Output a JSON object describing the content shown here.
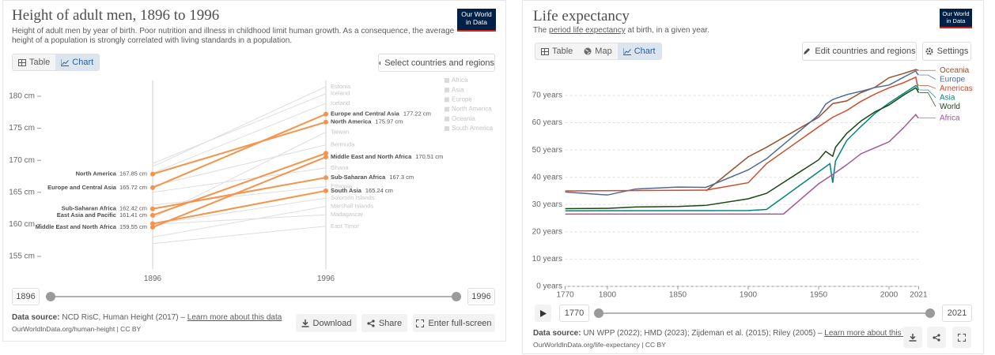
{
  "chart_data": [
    {
      "type": "slope",
      "title": "Height of adult men, 1896 to 1996",
      "subtitle": "Height of adult men by year of birth. Poor nutrition and illness in childhood limit human growth. As a consequence, the average height of a population is strongly correlated with living standards in a population.",
      "x": [
        1896,
        1996
      ],
      "xlim": [
        1896,
        1996
      ],
      "xticks": [
        1896,
        1996
      ],
      "ylim": [
        153,
        182.5
      ],
      "yticks": [
        {
          "value": 155,
          "label": "155 cm"
        },
        {
          "value": 160,
          "label": "160 cm"
        },
        {
          "value": 165,
          "label": "165 cm"
        },
        {
          "value": 170,
          "label": "170 cm"
        },
        {
          "value": 175,
          "label": "175 cm"
        },
        {
          "value": 180,
          "label": "180 cm"
        }
      ],
      "series": [
        {
          "name": "Europe and Central Asia",
          "color": "#f7924a",
          "values": [
            165.72,
            177.22
          ],
          "value_labels": [
            "165.72 cm",
            "177.22 cm"
          ]
        },
        {
          "name": "North America",
          "color": "#f7924a",
          "values": [
            167.85,
            175.97
          ],
          "value_labels": [
            "167.85 cm",
            "175.97 cm"
          ]
        },
        {
          "name": "Middle East and North Africa",
          "color": "#f7924a",
          "values": [
            159.55,
            170.51
          ],
          "value_labels": [
            "159.55 cm",
            "170.51 cm"
          ]
        },
        {
          "name": "Sub-Saharan Africa",
          "color": "#f7924a",
          "values": [
            162.42,
            167.3
          ],
          "value_labels": [
            "162.42 cm",
            "167.3 cm"
          ]
        },
        {
          "name": "East Asia and Pacific",
          "color": "#f7924a",
          "values": [
            161.41,
            171.1
          ],
          "value_labels": [
            "161.41 cm",
            null
          ]
        },
        {
          "name": "South Asia",
          "color": "#f7924a",
          "values": [
            160.1,
            165.24
          ],
          "value_labels": [
            null,
            "165.24 cm"
          ]
        }
      ],
      "background_series": [
        {
          "name": "Estonia",
          "color": "#dedede",
          "values": [
            169,
            181.5
          ]
        },
        {
          "name": "Iceland",
          "color": "#dedede",
          "values": [
            169.5,
            180.4
          ]
        },
        {
          "name": "Iceland",
          "color": "#dedede",
          "values": [
            168,
            178.9
          ]
        },
        {
          "name": "Taiwan",
          "color": "#dedede",
          "values": [
            161,
            174.4
          ]
        },
        {
          "name": "Bermuda",
          "color": "#dedede",
          "values": [
            166,
            172.4
          ]
        },
        {
          "name": "Ghana",
          "color": "#dedede",
          "values": [
            165,
            168.8
          ]
        },
        {
          "name": "Ethiopia",
          "color": "#dedede",
          "values": [
            163,
            165.9
          ]
        },
        {
          "name": "Solomon Islands",
          "color": "#dedede",
          "values": [
            160,
            164.1
          ]
        },
        {
          "name": "Marshall Islands",
          "color": "#dedede",
          "values": [
            158,
            162.8
          ]
        },
        {
          "name": "Madagascar",
          "color": "#dedede",
          "values": [
            160,
            161.5
          ]
        },
        {
          "name": "East Timor",
          "color": "#dedede",
          "values": [
            157,
            159.7
          ]
        }
      ],
      "legend": {
        "entries": [
          "Africa",
          "Asia",
          "Europe",
          "North America",
          "Oceania",
          "South America"
        ],
        "color": "#d9d9d9"
      }
    },
    {
      "type": "line",
      "title": "Life expectancy",
      "subtitle_prefix": "The",
      "subtitle_link": "period life expectancy",
      "subtitle": "at birth, in a given year.",
      "xlim": [
        1770,
        2021
      ],
      "xticks": [
        1770,
        1800,
        1850,
        1900,
        1950,
        2000,
        2021
      ],
      "ylim": [
        0,
        80
      ],
      "yticks": [
        {
          "value": 0,
          "label": "0 years"
        },
        {
          "value": 10,
          "label": "10 years"
        },
        {
          "value": 20,
          "label": "20 years"
        },
        {
          "value": 30,
          "label": "30 years"
        },
        {
          "value": 40,
          "label": "40 years"
        },
        {
          "value": 50,
          "label": "50 years"
        },
        {
          "value": 60,
          "label": "60 years"
        },
        {
          "value": 70,
          "label": "70 years"
        }
      ],
      "grid": true,
      "series": [
        {
          "name": "Oceania",
          "color": "#9a5129",
          "x": [
            1870,
            1900,
            1913,
            1950,
            1960,
            1970,
            1980,
            1990,
            2000,
            2010,
            2019,
            2021
          ],
          "values": [
            35,
            47.5,
            51,
            62,
            67,
            68,
            71,
            73,
            76.5,
            78,
            79.5,
            79.2
          ]
        },
        {
          "name": "Europe",
          "color": "#4c6a9c",
          "x": [
            1770,
            1800,
            1820,
            1850,
            1870,
            1900,
            1913,
            1950,
            1955,
            1960,
            1970,
            1980,
            1990,
            2000,
            2010,
            2019,
            2020,
            2021
          ],
          "values": [
            34.6,
            33.5,
            35.7,
            36.4,
            36.3,
            42.7,
            46.8,
            62.8,
            66.8,
            68.5,
            70.3,
            71.5,
            72.9,
            73.8,
            76.6,
            79,
            78,
            77.5
          ]
        },
        {
          "name": "Americas",
          "color": "#d04a2b",
          "x": [
            1770,
            1850,
            1870,
            1900,
            1913,
            1950,
            1960,
            1970,
            1980,
            1990,
            2000,
            2010,
            2019,
            2020,
            2021
          ],
          "values": [
            35,
            35.2,
            35.3,
            38,
            45,
            58.5,
            62,
            64.5,
            67.8,
            70.5,
            72.8,
            74.6,
            76.7,
            74.1,
            73.6
          ]
        },
        {
          "name": "Asia",
          "color": "#00847e",
          "x": [
            1770,
            1900,
            1913,
            1950,
            1958,
            1960,
            1962,
            1970,
            1980,
            1990,
            2000,
            2010,
            2019,
            2020,
            2021
          ],
          "values": [
            27.7,
            27.8,
            28.2,
            42,
            45,
            38,
            46,
            53.5,
            58.6,
            63.4,
            67.2,
            70.6,
            73.6,
            73.4,
            72
          ]
        },
        {
          "name": "World",
          "color": "#18470f",
          "x": [
            1770,
            1800,
            1820,
            1850,
            1870,
            1900,
            1913,
            1950,
            1955,
            1960,
            1962,
            1970,
            1980,
            1990,
            2000,
            2010,
            2019,
            2020,
            2021
          ],
          "values": [
            28.5,
            28.6,
            29.1,
            29.3,
            29.7,
            32.1,
            34.1,
            46.4,
            49.5,
            47.7,
            51,
            56.1,
            60.6,
            64,
            66.5,
            70,
            72.8,
            72,
            71
          ]
        },
        {
          "name": "Africa",
          "color": "#a2559c",
          "x": [
            1770,
            1925,
            1950,
            1960,
            1970,
            1980,
            1990,
            2000,
            2010,
            2019,
            2020,
            2021
          ],
          "values": [
            26.5,
            26.5,
            37.6,
            41,
            44.6,
            48.6,
            50.8,
            53,
            58,
            63,
            62.2,
            61.7
          ]
        }
      ]
    }
  ],
  "panels": [
    {
      "logo": [
        "Our World",
        "in Data"
      ],
      "tabs": [
        "Table",
        "Chart"
      ],
      "active_tab": 1,
      "buttons": [
        "Select countries and regions"
      ],
      "slider": [
        "1896",
        "1996"
      ],
      "source_label": "Data source:",
      "source": "NCD RisC, Human Height (2017) –",
      "learn_more": "Learn more about this data",
      "url": "OurWorldInData.org/human-height | CC BY",
      "actions": [
        "Download",
        "Share",
        "Enter full-screen"
      ]
    },
    {
      "logo": [
        "Our World",
        "in Data"
      ],
      "tabs": [
        "Table",
        "Map",
        "Chart"
      ],
      "active_tab": 2,
      "buttons": [
        "Edit countries and regions",
        "Settings"
      ],
      "slider": [
        "1770",
        "2021"
      ],
      "source_label": "Data source:",
      "source": "UN WPP (2022); HMD (2023); Zijdeman et al. (2015); Riley (2005) –",
      "learn_more": "Learn more about this data",
      "url": "OurWorldInData.org/life-expectancy | CC BY"
    }
  ]
}
